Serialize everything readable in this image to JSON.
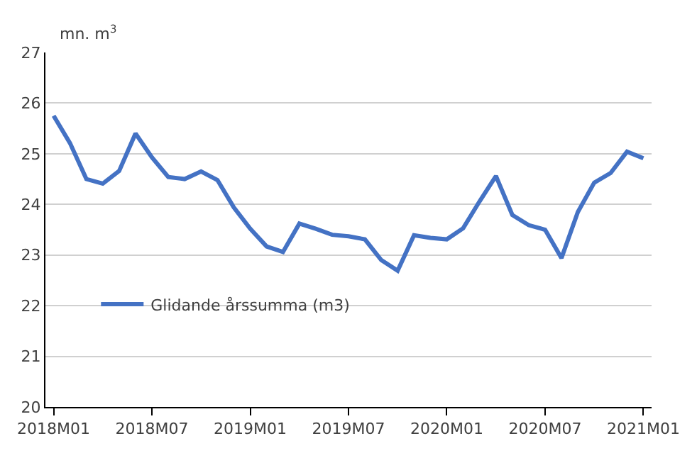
{
  "chart_data": {
    "type": "line",
    "ylabel": "mn. m$^{3}$",
    "categories": [
      "2018M01",
      null,
      null,
      null,
      null,
      null,
      "2018M07",
      null,
      null,
      null,
      null,
      null,
      "2019M01",
      null,
      null,
      null,
      null,
      null,
      "2019M07",
      null,
      null,
      null,
      null,
      null,
      "2020M01",
      null,
      null,
      null,
      null,
      null,
      "2020M07",
      null,
      null,
      null,
      null,
      null,
      "2021M01"
    ],
    "series": [
      {
        "name": "Glidande årssumma (m3)",
        "color": "#4472c4",
        "values": [
          25.75,
          25.21,
          24.5,
          24.41,
          24.66,
          25.4,
          24.93,
          24.54,
          24.5,
          24.65,
          24.48,
          23.94,
          23.52,
          23.17,
          23.06,
          23.62,
          23.52,
          23.4,
          23.37,
          23.31,
          22.9,
          22.69,
          23.39,
          23.34,
          23.31,
          23.53,
          24.06,
          24.56,
          23.79,
          23.59,
          23.5,
          22.94,
          23.85,
          24.43,
          24.62,
          25.04,
          24.91
        ]
      }
    ],
    "ylim": [
      20,
      27
    ],
    "yticks": [
      20,
      21,
      22,
      23,
      24,
      25,
      26,
      27
    ],
    "grid": "y",
    "legend": "bottom left",
    "marker": "none",
    "line_style": "solid"
  }
}
